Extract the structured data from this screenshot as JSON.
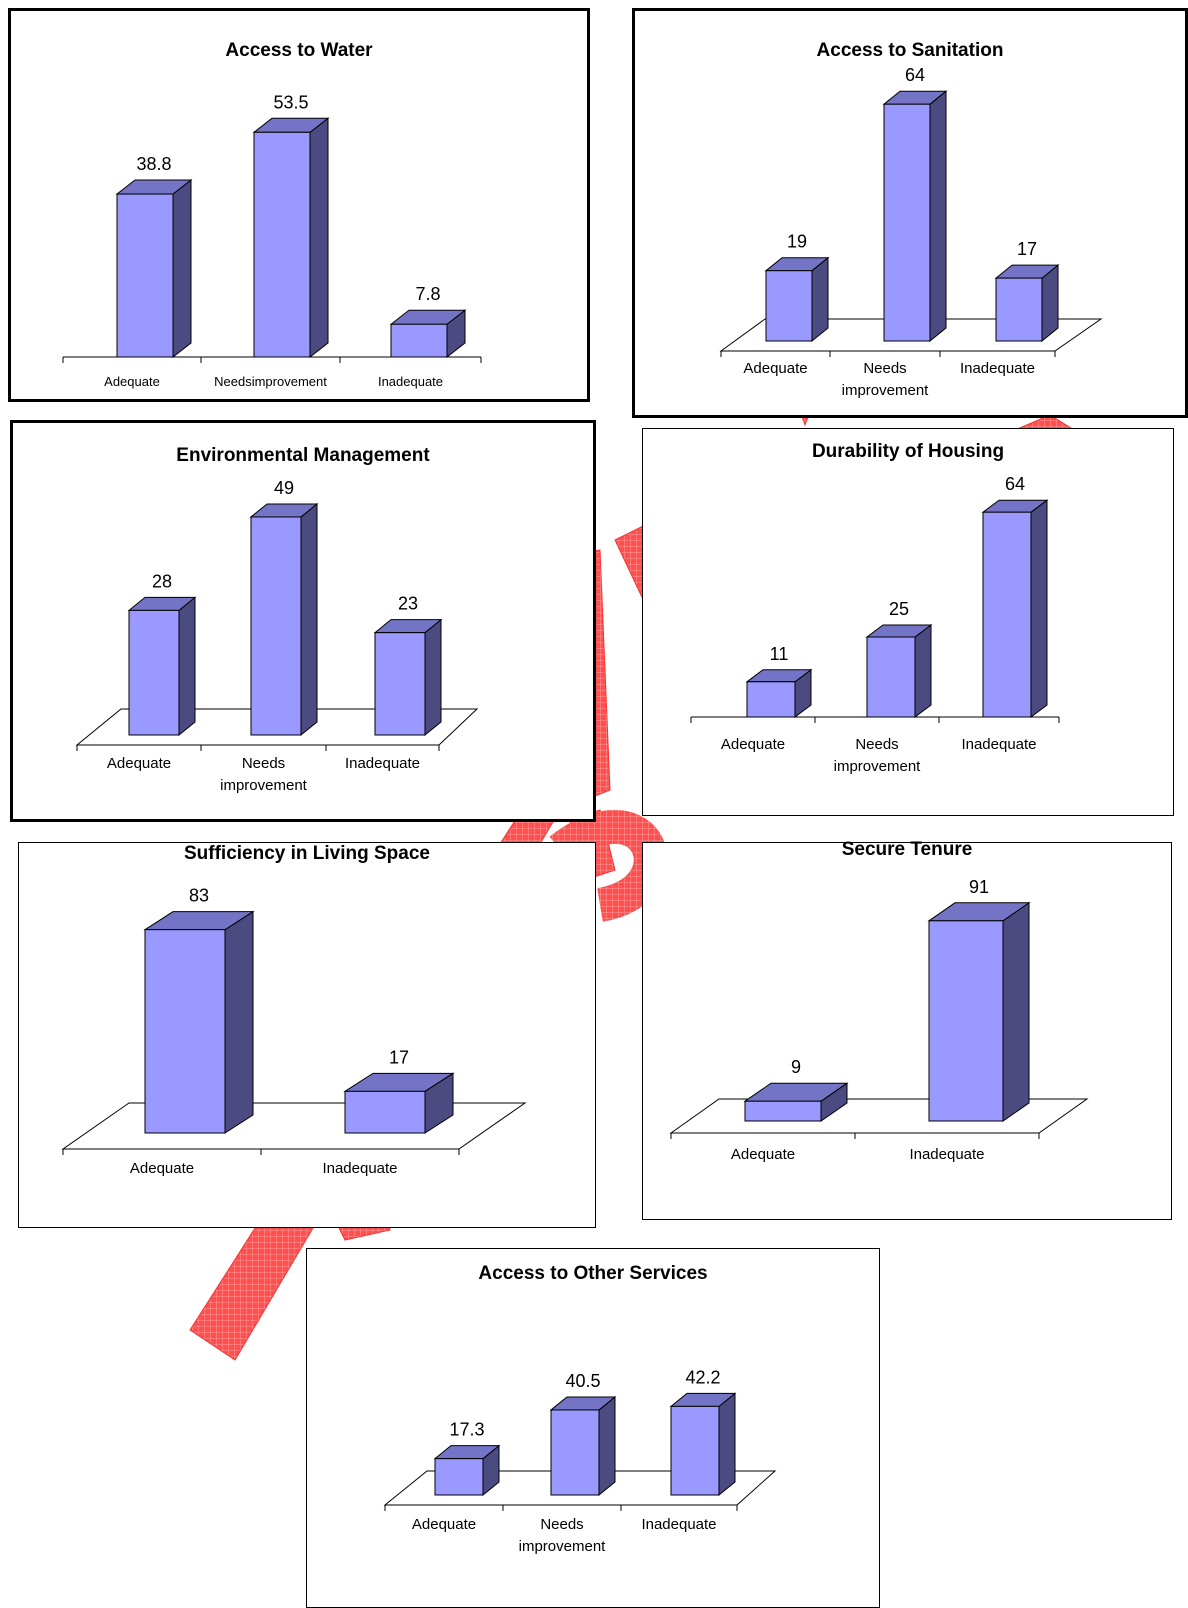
{
  "colors": {
    "bar_front": "#9999ff",
    "bar_side": "#4b4b82",
    "bar_top": "#7474c6",
    "outline": "#000000",
    "watermark": "#ff3030"
  },
  "chart_data": [
    {
      "type": "bar",
      "title": "Access to Water",
      "categories": [
        "Adequate",
        "Needs improvement",
        "Inadequate"
      ],
      "category_labels": [
        [
          "Adequate"
        ],
        [
          "Needsimprovement"
        ],
        [
          "Inadequate"
        ]
      ],
      "values": [
        38.8,
        53.5,
        7.8
      ],
      "value_labels": [
        "38.8",
        "53.5",
        "7.8"
      ]
    },
    {
      "type": "bar",
      "title": "Access to Sanitation",
      "categories": [
        "Adequate",
        "Needs improvement",
        "Inadequate"
      ],
      "category_labels": [
        [
          "Adequate"
        ],
        [
          "Needs",
          "improvement"
        ],
        [
          "Inadequate"
        ]
      ],
      "values": [
        19,
        64,
        17
      ],
      "value_labels": [
        "19",
        "64",
        "17"
      ]
    },
    {
      "type": "bar",
      "title": "Environmental Management",
      "categories": [
        "Adequate",
        "Needs improvement",
        "Inadequate"
      ],
      "category_labels": [
        [
          "Adequate"
        ],
        [
          "Needs",
          "improvement"
        ],
        [
          "Inadequate"
        ]
      ],
      "values": [
        28,
        49,
        23
      ],
      "value_labels": [
        "28",
        "49",
        "23"
      ]
    },
    {
      "type": "bar",
      "title": "Durability of Housing",
      "categories": [
        "Adequate",
        "Needs improvement",
        "Inadequate"
      ],
      "category_labels": [
        [
          "Adequate"
        ],
        [
          "Needs",
          "improvement"
        ],
        [
          "Inadequate"
        ]
      ],
      "values": [
        11,
        25,
        64
      ],
      "value_labels": [
        "11",
        "25",
        "64"
      ]
    },
    {
      "type": "bar",
      "title": "Sufficiency in Living Space",
      "categories": [
        "Adequate",
        "Inadequate"
      ],
      "category_labels": [
        [
          "Adequate"
        ],
        [
          "Inadequate"
        ]
      ],
      "values": [
        83,
        17
      ],
      "value_labels": [
        "83",
        "17"
      ]
    },
    {
      "type": "bar",
      "title": "Secure Tenure",
      "categories": [
        "Adequate",
        "Inadequate"
      ],
      "category_labels": [
        [
          "Adequate"
        ],
        [
          "Inadequate"
        ]
      ],
      "values": [
        9,
        91
      ],
      "value_labels": [
        "9",
        "91"
      ]
    },
    {
      "type": "bar",
      "title": "Access to Other Services",
      "categories": [
        "Adequate",
        "Needs improvement",
        "Inadequate"
      ],
      "category_labels": [
        [
          "Adequate"
        ],
        [
          "Needs",
          "improvement"
        ],
        [
          "Inadequate"
        ]
      ],
      "values": [
        17.3,
        40.5,
        42.2
      ],
      "value_labels": [
        "17.3",
        "40.5",
        "42.2"
      ]
    }
  ]
}
